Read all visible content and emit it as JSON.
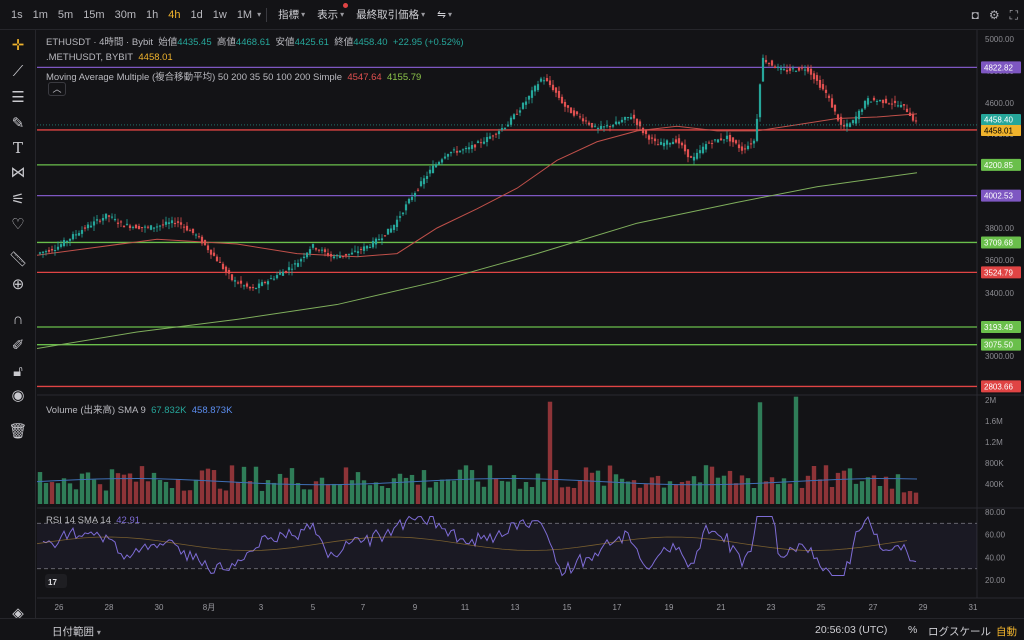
{
  "toolbar": {
    "timeframes": [
      "1s",
      "1m",
      "5m",
      "15m",
      "30m",
      "1h",
      "4h",
      "1d",
      "1w",
      "1M"
    ],
    "active_timeframe": "4h",
    "indicators_label": "指標",
    "display_label": "表示",
    "last_price_label": "最終取引価格"
  },
  "legend": {
    "symbol": "ETHUSDT · 4時間 · Bybit",
    "open_label": "始値",
    "open": "4435.45",
    "high_label": "高値",
    "high": "4468.61",
    "low_label": "安値",
    "low": "4425.61",
    "close_label": "終値",
    "close": "4458.40",
    "change": "+22.95 (+0.52%)",
    "mark_symbol": ".METHUSDT, BYBIT",
    "mark_value": "4458.01",
    "ma_label": "Moving Average Multiple (複合移動平均) 50 200 35 50 100 200 Simple",
    "ma_value1": "4547.64",
    "ma_value2": "4155.79",
    "volume_label": "Volume (出来高) SMA 9",
    "volume_value1": "67.832K",
    "volume_value2": "458.873K",
    "rsi_label": "RSI 14 SMA 14",
    "rsi_value": "42.91"
  },
  "price_axis": [
    "5000.00",
    "4800.00",
    "4600.00",
    "4400.00",
    "4200.00",
    "4000.00",
    "3800.00",
    "3600.00",
    "3400.00",
    "3200.00",
    "3000.00",
    "2800.00"
  ],
  "volume_axis": [
    "2M",
    "1.6M",
    "1.2M",
    "800K",
    "400K"
  ],
  "rsi_axis": [
    "80.00",
    "60.00",
    "40.00",
    "20.00"
  ],
  "date_axis": [
    "26",
    "28",
    "30",
    "8月",
    "3",
    "5",
    "7",
    "9",
    "11",
    "13",
    "15",
    "17",
    "19",
    "21",
    "23",
    "25",
    "27",
    "29",
    "31"
  ],
  "horizontal_lines": [
    {
      "price": "4822.82",
      "color": "#7e57c2"
    },
    {
      "price": "4426.20",
      "color": "#e04444"
    },
    {
      "price": "4200.85",
      "color": "#6abf4b"
    },
    {
      "price": "4002.53",
      "color": "#7e57c2"
    },
    {
      "price": "3709.68",
      "color": "#6abf4b"
    },
    {
      "price": "3524.79",
      "color": "#e04444"
    },
    {
      "price": "3193.49",
      "color": "#6abf4b"
    },
    {
      "price": "3075.50",
      "color": "#6abf4b"
    },
    {
      "price": "2803.66",
      "color": "#e04444"
    }
  ],
  "price_tags": {
    "last": "4458.40",
    "mark": "4458.01"
  },
  "bottom": {
    "date_range": "日付範囲",
    "time": "20:56:03 (UTC)",
    "percent": "%",
    "log": "ログスケール",
    "auto": "自動"
  },
  "colors": {
    "up": "#26a69a",
    "down": "#e05050",
    "ma50": "#e05050",
    "ma200": "#8bc34a",
    "rsi": "#7e6cd6",
    "accent": "#f0b32c"
  },
  "left_tools": [
    "crosshair-icon",
    "trendline-icon",
    "fib-icon",
    "brush-icon",
    "text-icon",
    "pattern-icon",
    "forecast-icon",
    "favorite-icon",
    "ruler-icon",
    "zoom-icon",
    "magnet-icon",
    "stay-drawing-icon",
    "lock-icon",
    "eye-icon",
    "trash-icon"
  ]
}
